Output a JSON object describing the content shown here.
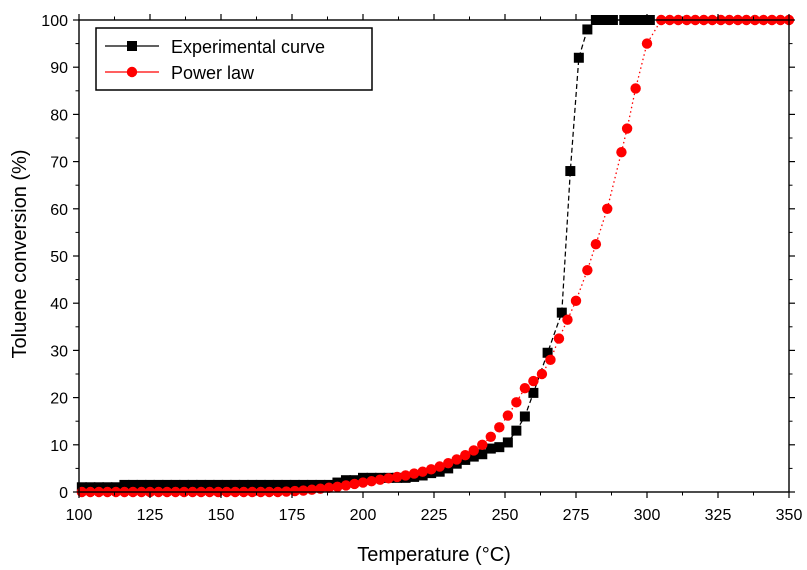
{
  "chart_data": {
    "type": "scatter",
    "title": "",
    "xlabel": "Temperature (°C)",
    "ylabel": "Toluene conversion (%)",
    "xlim": [
      100,
      350
    ],
    "ylim": [
      0,
      100
    ],
    "xticks": [
      "100",
      "125",
      "150",
      "175",
      "200",
      "225",
      "250",
      "275",
      "300",
      "325",
      "350"
    ],
    "yticks": [
      "0",
      "10",
      "20",
      "30",
      "40",
      "50",
      "60",
      "70",
      "80",
      "90",
      "100"
    ],
    "legend_position": "top-left",
    "grid": false,
    "series": [
      {
        "name": "Experimental curve",
        "color": "#000000",
        "marker": "square",
        "line": "dashed",
        "points": [
          [
            101,
            1.0
          ],
          [
            104,
            1.0
          ],
          [
            107,
            1.0
          ],
          [
            110,
            1.0
          ],
          [
            113,
            1.0
          ],
          [
            116,
            1.5
          ],
          [
            119,
            1.5
          ],
          [
            122,
            1.5
          ],
          [
            125,
            1.5
          ],
          [
            128,
            1.5
          ],
          [
            131,
            1.5
          ],
          [
            134,
            1.5
          ],
          [
            137,
            1.5
          ],
          [
            140,
            1.5
          ],
          [
            143,
            1.5
          ],
          [
            146,
            1.5
          ],
          [
            149,
            1.5
          ],
          [
            152,
            1.5
          ],
          [
            155,
            1.5
          ],
          [
            158,
            1.5
          ],
          [
            161,
            1.5
          ],
          [
            164,
            1.5
          ],
          [
            167,
            1.5
          ],
          [
            170,
            1.5
          ],
          [
            173,
            1.5
          ],
          [
            176,
            1.5
          ],
          [
            179,
            1.5
          ],
          [
            182,
            1.5
          ],
          [
            185,
            1.5
          ],
          [
            188,
            1.5
          ],
          [
            191,
            2.0
          ],
          [
            194,
            2.5
          ],
          [
            197,
            2.5
          ],
          [
            200,
            3.0
          ],
          [
            203,
            3.0
          ],
          [
            206,
            3.0
          ],
          [
            209,
            3.0
          ],
          [
            212,
            3.0
          ],
          [
            215,
            3.0
          ],
          [
            218,
            3.2
          ],
          [
            221,
            3.5
          ],
          [
            224,
            4.0
          ],
          [
            227,
            4.3
          ],
          [
            230,
            5.0
          ],
          [
            233,
            6.0
          ],
          [
            236,
            6.8
          ],
          [
            239,
            7.5
          ],
          [
            242,
            8.0
          ],
          [
            245,
            9.2
          ],
          [
            248,
            9.5
          ],
          [
            251,
            10.5
          ],
          [
            254,
            13.0
          ],
          [
            257,
            16.0
          ],
          [
            260,
            21.0
          ],
          [
            265,
            29.5
          ],
          [
            270,
            38.0
          ],
          [
            273,
            68.0
          ],
          [
            276,
            92.0
          ],
          [
            279,
            98.0
          ],
          [
            282,
            100
          ],
          [
            285,
            100
          ],
          [
            288,
            100
          ],
          [
            292,
            100
          ],
          [
            295,
            100
          ],
          [
            298,
            100
          ],
          [
            301,
            100
          ]
        ]
      },
      {
        "name": "Power law",
        "color": "#ff0000",
        "marker": "circle",
        "line": "dotted",
        "points": [
          [
            101,
            0
          ],
          [
            104,
            0
          ],
          [
            107,
            0
          ],
          [
            110,
            0
          ],
          [
            113,
            0
          ],
          [
            116,
            0
          ],
          [
            119,
            0
          ],
          [
            122,
            0
          ],
          [
            125,
            0
          ],
          [
            128,
            0
          ],
          [
            131,
            0
          ],
          [
            134,
            0
          ],
          [
            137,
            0
          ],
          [
            140,
            0
          ],
          [
            143,
            0
          ],
          [
            146,
            0
          ],
          [
            149,
            0
          ],
          [
            152,
            0
          ],
          [
            155,
            0
          ],
          [
            158,
            0
          ],
          [
            161,
            0
          ],
          [
            164,
            0
          ],
          [
            167,
            0
          ],
          [
            170,
            0
          ],
          [
            173,
            0.1
          ],
          [
            176,
            0.2
          ],
          [
            179,
            0.3
          ],
          [
            182,
            0.5
          ],
          [
            185,
            0.7
          ],
          [
            188,
            0.9
          ],
          [
            191,
            1.1
          ],
          [
            194,
            1.4
          ],
          [
            197,
            1.7
          ],
          [
            200,
            2.0
          ],
          [
            203,
            2.3
          ],
          [
            206,
            2.6
          ],
          [
            209,
            2.9
          ],
          [
            212,
            3.2
          ],
          [
            215,
            3.5
          ],
          [
            218,
            3.9
          ],
          [
            221,
            4.3
          ],
          [
            224,
            4.8
          ],
          [
            227,
            5.4
          ],
          [
            230,
            6.1
          ],
          [
            233,
            6.9
          ],
          [
            236,
            7.8
          ],
          [
            239,
            8.8
          ],
          [
            242,
            10.0
          ],
          [
            245,
            11.7
          ],
          [
            248,
            13.7
          ],
          [
            251,
            16.2
          ],
          [
            254,
            19.0
          ],
          [
            257,
            22.0
          ],
          [
            260,
            23.5
          ],
          [
            263,
            25.0
          ],
          [
            266,
            28.0
          ],
          [
            269,
            32.5
          ],
          [
            272,
            36.5
          ],
          [
            275,
            40.5
          ],
          [
            279,
            47.0
          ],
          [
            282,
            52.5
          ],
          [
            286,
            60.0
          ],
          [
            291,
            72.0
          ],
          [
            293,
            77.0
          ],
          [
            296,
            85.5
          ],
          [
            300,
            95.0
          ],
          [
            305,
            100
          ],
          [
            308,
            100
          ],
          [
            311,
            100
          ],
          [
            314,
            100
          ],
          [
            317,
            100
          ],
          [
            320,
            100
          ],
          [
            323,
            100
          ],
          [
            326,
            100
          ],
          [
            329,
            100
          ],
          [
            332,
            100
          ],
          [
            335,
            100
          ],
          [
            338,
            100
          ],
          [
            341,
            100
          ],
          [
            344,
            100
          ],
          [
            347,
            100
          ],
          [
            350,
            100
          ]
        ]
      }
    ]
  }
}
